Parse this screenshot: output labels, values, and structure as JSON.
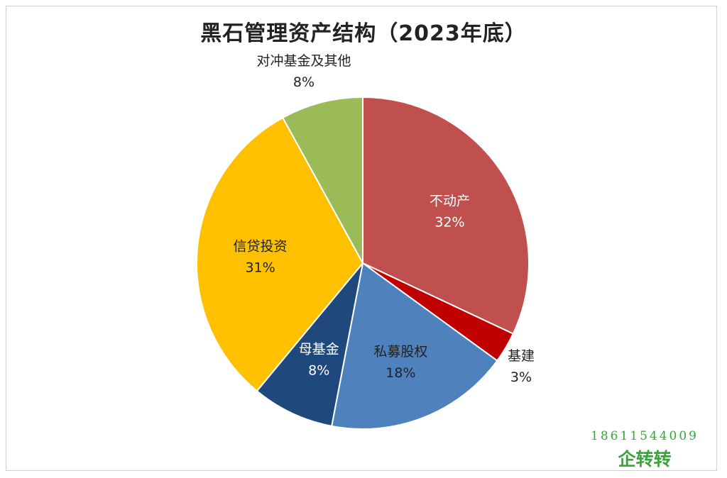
{
  "chart_data": {
    "type": "pie",
    "title": "黑石管理资产结构（2023年底）",
    "slices": [
      {
        "label": "不动产",
        "value": 32,
        "value_label": "32%",
        "color": "#c0504d",
        "label_color": "#ffffff",
        "label_position": "inside"
      },
      {
        "label": "基建",
        "value": 3,
        "value_label": "3%",
        "color": "#c00000",
        "label_color": "#222222",
        "label_position": "outside"
      },
      {
        "label": "私募股权",
        "value": 18,
        "value_label": "18%",
        "color": "#4f81bd",
        "label_color": "#222222",
        "label_position": "inside"
      },
      {
        "label": "母基金",
        "value": 8,
        "value_label": "8%",
        "color": "#1f497d",
        "label_color": "#ffffff",
        "label_position": "inside"
      },
      {
        "label": "信贷投资",
        "value": 31,
        "value_label": "31%",
        "color": "#ffc000",
        "label_color": "#222222",
        "label_position": "inside"
      },
      {
        "label": "对冲基金及其他",
        "value": 8,
        "value_label": "8%",
        "color": "#9bbb59",
        "label_color": "#222222",
        "label_position": "outside"
      }
    ],
    "start_angle": "12 o'clock",
    "direction": "clockwise",
    "legend": "none"
  },
  "watermark": {
    "phone": "18611544009",
    "brand": "企转转",
    "color": "#3aa43a"
  }
}
